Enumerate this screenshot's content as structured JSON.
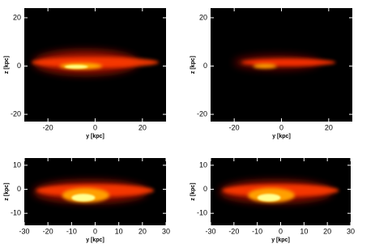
{
  "chart_data": [
    {
      "type": "image",
      "xlabel": "y [kpc]",
      "ylabel": "z [kpc]",
      "xlim": [
        -30,
        30
      ],
      "xticks": [
        -20,
        0,
        20
      ],
      "ylim": [
        -23,
        24
      ],
      "yticks": [
        -20,
        0,
        20
      ]
    },
    {
      "type": "image",
      "xlabel": "y [kpc]",
      "ylabel": "z [kpc]",
      "xlim": [
        -30,
        30
      ],
      "xticks": [
        -20,
        0,
        20
      ],
      "ylim": [
        -23,
        24
      ],
      "yticks": [
        -20,
        0,
        20
      ]
    },
    {
      "type": "image",
      "xlabel": "y [kpc]",
      "ylabel": "z [kpc]",
      "xlim": [
        -30,
        30
      ],
      "xticks": [
        -30,
        -20,
        -10,
        0,
        10,
        20,
        30
      ],
      "ylim": [
        -15,
        13
      ],
      "yticks": [
        -10,
        0,
        10
      ]
    },
    {
      "type": "image",
      "xlabel": "y [kpc]",
      "ylabel": "z [kpc]",
      "xlim": [
        -30,
        30
      ],
      "xticks": [
        -30,
        -20,
        -10,
        0,
        10,
        20,
        30
      ],
      "ylim": [
        -15,
        13
      ],
      "yticks": [
        -10,
        0,
        10
      ]
    }
  ]
}
